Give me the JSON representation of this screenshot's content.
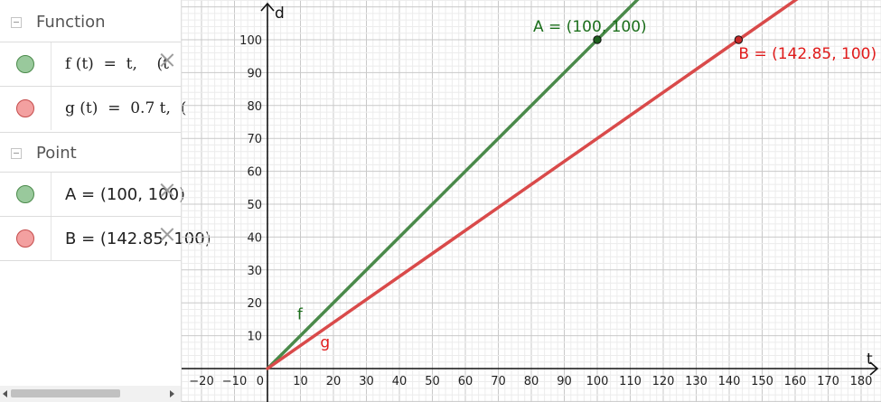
{
  "algebra": {
    "groups": [
      {
        "header": "Function"
      },
      {
        "header": "Point"
      }
    ],
    "rows": [
      {
        "expr": "f (t)  =  t,    (t",
        "color": "green"
      },
      {
        "expr": "g (t)  =  0.7 t,  (",
        "color": "red"
      },
      {
        "expr": "A = (100, 100)",
        "color": "green"
      },
      {
        "expr": "B = (142.85, 100)",
        "color": "red"
      }
    ]
  },
  "graphics": {
    "x_axis_label": "t",
    "y_axis_label": "d",
    "x_ticks": [
      "−20",
      "−10",
      "0",
      "10",
      "20",
      "30",
      "40",
      "50",
      "60",
      "70",
      "80",
      "90",
      "100",
      "110",
      "120",
      "130",
      "140",
      "150",
      "160",
      "170",
      "180"
    ],
    "y_ticks": [
      "10",
      "20",
      "30",
      "40",
      "50",
      "60",
      "70",
      "80",
      "90",
      "100"
    ],
    "colors": {
      "f": "#4a8a4a",
      "g": "#d94a4a",
      "label_green": "#1b6e1b",
      "label_red": "#e01b1b",
      "minor_grid": "#ececec",
      "major_grid": "#c9c9c9",
      "axis": "#111111"
    },
    "functions": [
      {
        "name": "f",
        "label": "f",
        "slope": 1.0,
        "color": "green"
      },
      {
        "name": "g",
        "label": "g",
        "slope": 0.7,
        "color": "red"
      }
    ],
    "points": [
      {
        "name": "A",
        "label": "A = (100, 100)",
        "x": 100,
        "y": 100,
        "color": "green"
      },
      {
        "name": "B",
        "label": "B = (142.85, 100)",
        "x": 142.85,
        "y": 100,
        "color": "red"
      }
    ]
  }
}
